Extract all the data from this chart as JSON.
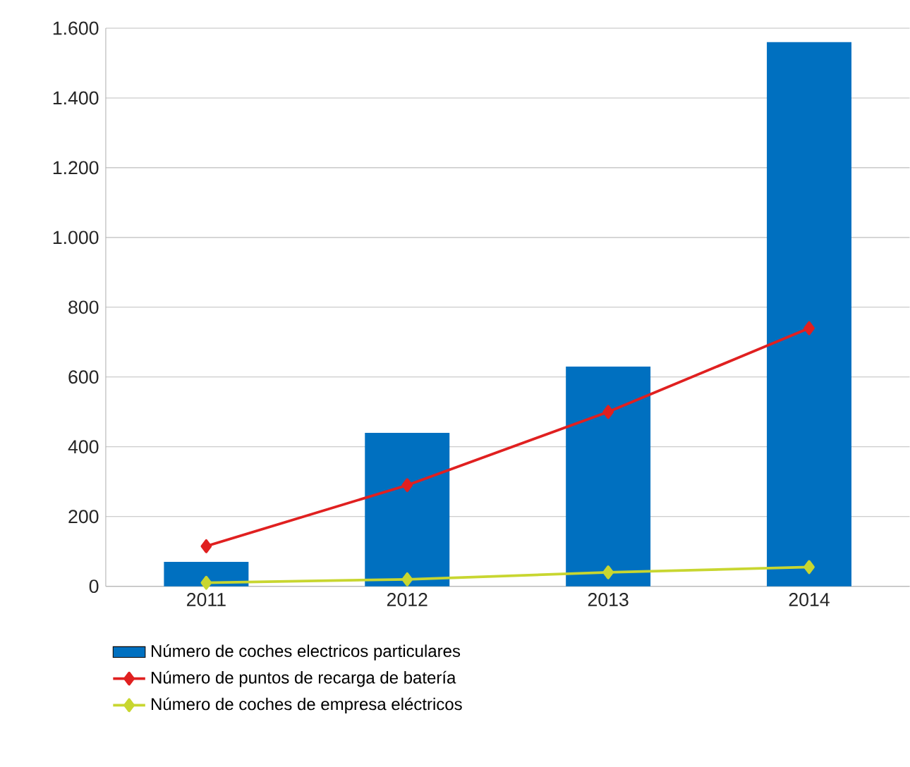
{
  "chart_data": {
    "type": "bar",
    "categories": [
      "2011",
      "2012",
      "2013",
      "2014"
    ],
    "series": [
      {
        "name": "Número de coches electricos particulares",
        "color": "#0070c0",
        "values": [
          70,
          440,
          630,
          1560
        ]
      },
      {
        "name": "Número de puntos de recarga de batería",
        "type": "line",
        "color": "#e02020",
        "values": [
          115,
          290,
          500,
          740
        ]
      },
      {
        "name": "Número de coches de empresa eléctricos",
        "type": "line",
        "color": "#c8d630",
        "values": [
          10,
          20,
          40,
          55
        ]
      }
    ],
    "ylim": [
      0,
      1600
    ],
    "yticks": [
      0,
      200,
      400,
      600,
      800,
      {
        "value": 1000,
        "label": "1.000"
      },
      {
        "value": 1200,
        "label": "1.200"
      },
      {
        "value": 1400,
        "label": "1.400"
      },
      {
        "value": 1600,
        "label": "1.600"
      }
    ],
    "grid": "y",
    "legend": "bottom",
    "marker": "diamond"
  }
}
